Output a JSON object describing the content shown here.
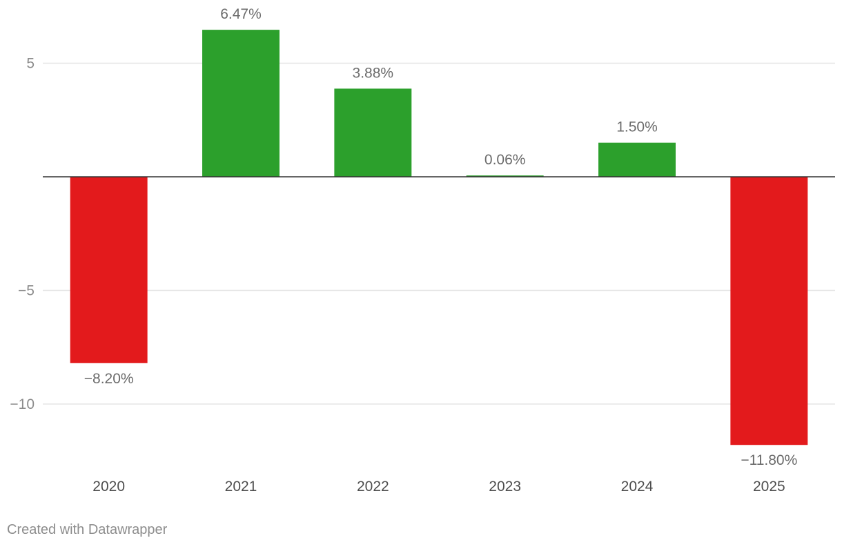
{
  "chart_data": {
    "type": "bar",
    "categories": [
      "2020",
      "2021",
      "2022",
      "2023",
      "2024",
      "2025"
    ],
    "values": [
      -8.2,
      6.47,
      3.88,
      0.06,
      1.5,
      -11.8
    ],
    "value_labels": [
      "−8.20%",
      "6.47%",
      "3.88%",
      "0.06%",
      "1.50%",
      "−11.80%"
    ],
    "y_ticks": [
      5,
      -5,
      -10
    ],
    "y_tick_labels": [
      "5",
      "−5",
      "−10"
    ],
    "ylim": [
      -12.4,
      6.5
    ],
    "grid": true,
    "colors": {
      "positive": "#2ca02c",
      "negative": "#e31a1c",
      "zero_line": "#333333",
      "grid": "#e5e5e5"
    }
  },
  "footer": {
    "credit": "Created with Datawrapper"
  }
}
